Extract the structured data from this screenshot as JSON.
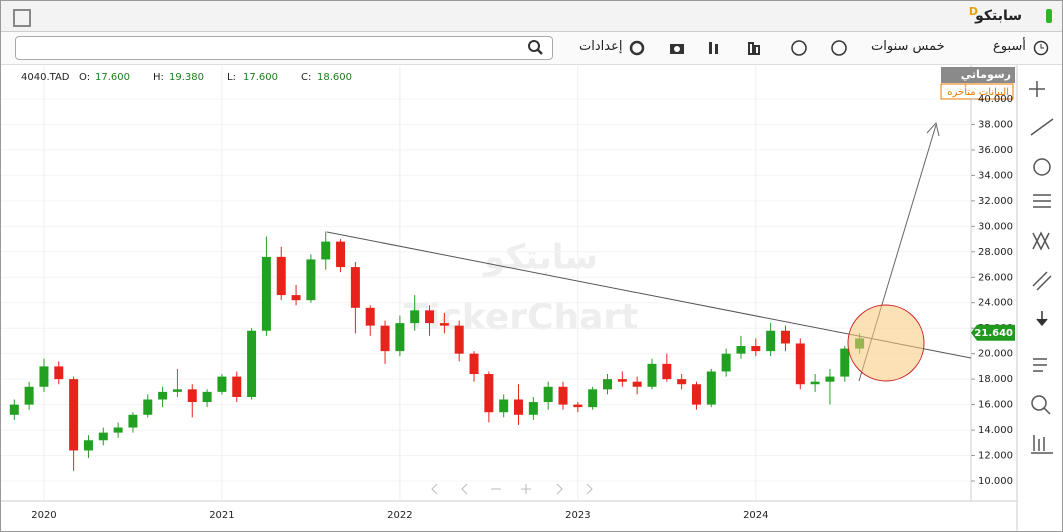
{
  "header": {
    "title": "سابتكو",
    "badge": "D"
  },
  "toolbar": {
    "period": "أسبوع",
    "range": "خمس سنوات",
    "settings": "إعدادات"
  },
  "chart_panel": {
    "drawings": "رسوماتي",
    "delay_note": "البيانات متأخره",
    "watermark_ar": "سابتكو",
    "watermark_en": "TickerChart"
  },
  "chart_data": {
    "type": "candlestick",
    "symbol": "4040.TAD",
    "ohlc_info": [
      {
        "label": "O:",
        "value": "17.600"
      },
      {
        "label": "H:",
        "value": "19.380"
      },
      {
        "label": "L:",
        "value": "17.600"
      },
      {
        "label": "C:",
        "value": "18.600"
      }
    ],
    "categories": [
      null,
      null,
      "2020",
      null,
      null,
      null,
      null,
      null,
      null,
      null,
      null,
      null,
      null,
      null,
      "2021",
      null,
      null,
      null,
      null,
      null,
      null,
      null,
      null,
      null,
      null,
      null,
      "2022",
      null,
      null,
      null,
      null,
      null,
      null,
      null,
      null,
      null,
      null,
      null,
      "2023",
      null,
      null,
      null,
      null,
      null,
      null,
      null,
      null,
      null,
      null,
      null,
      "2024",
      null,
      null,
      null,
      null,
      null,
      null,
      null
    ],
    "open": [
      15.2,
      16.0,
      17.4,
      19.0,
      18.0,
      12.4,
      13.2,
      13.8,
      14.2,
      15.2,
      16.4,
      17.0,
      17.2,
      16.2,
      17.0,
      18.2,
      16.6,
      21.8,
      27.6,
      24.6,
      24.2,
      27.4,
      28.8,
      26.8,
      23.6,
      22.2,
      20.2,
      22.4,
      23.4,
      22.4,
      22.2,
      20.0,
      18.4,
      15.4,
      16.4,
      15.2,
      16.2,
      17.4,
      16.0,
      15.8,
      17.2,
      18.0,
      17.8,
      17.4,
      19.2,
      18.0,
      17.6,
      16.0,
      18.6,
      20.0,
      20.6,
      20.2,
      21.8,
      20.8,
      17.6,
      17.8,
      18.2,
      20.4
    ],
    "high": [
      16.4,
      17.8,
      19.6,
      19.4,
      18.2,
      13.6,
      14.2,
      14.6,
      15.4,
      16.8,
      17.4,
      18.8,
      17.6,
      17.2,
      18.4,
      18.6,
      22.0,
      29.2,
      28.4,
      25.4,
      27.8,
      29.6,
      29.0,
      27.2,
      23.8,
      22.6,
      23.0,
      24.6,
      23.8,
      23.2,
      22.6,
      20.2,
      18.6,
      16.8,
      17.6,
      16.6,
      17.8,
      17.8,
      16.2,
      17.4,
      18.4,
      18.6,
      18.2,
      19.6,
      20.0,
      18.4,
      17.8,
      18.8,
      20.4,
      21.4,
      21.2,
      22.4,
      22.2,
      21.2,
      18.4,
      18.8,
      20.6,
      21.6
    ],
    "low": [
      14.8,
      15.6,
      17.0,
      17.6,
      10.8,
      11.8,
      12.8,
      13.4,
      13.8,
      15.0,
      15.8,
      16.6,
      15.0,
      15.8,
      16.8,
      16.2,
      16.4,
      21.4,
      24.2,
      23.8,
      24.0,
      26.6,
      26.4,
      21.6,
      21.4,
      19.2,
      19.8,
      21.8,
      21.4,
      21.6,
      19.4,
      17.8,
      14.6,
      15.0,
      14.4,
      14.8,
      15.6,
      15.6,
      15.4,
      15.6,
      16.8,
      17.4,
      16.8,
      17.2,
      17.8,
      17.2,
      15.6,
      15.8,
      18.2,
      19.6,
      19.8,
      19.8,
      20.2,
      17.2,
      17.0,
      16.0,
      17.8,
      20.0
    ],
    "close": [
      16.0,
      17.4,
      19.0,
      18.0,
      12.4,
      13.2,
      13.8,
      14.2,
      15.2,
      16.4,
      17.0,
      17.2,
      16.2,
      17.0,
      18.2,
      16.6,
      21.8,
      27.6,
      24.6,
      24.2,
      27.4,
      28.8,
      26.8,
      23.6,
      22.2,
      20.2,
      22.4,
      23.4,
      22.4,
      22.2,
      20.0,
      18.4,
      15.4,
      16.4,
      15.2,
      16.2,
      17.4,
      16.0,
      15.8,
      17.2,
      18.0,
      17.8,
      17.4,
      19.2,
      18.0,
      17.6,
      16.0,
      18.6,
      20.0,
      20.6,
      20.2,
      21.8,
      20.8,
      17.6,
      17.8,
      18.2,
      20.4,
      21.2
    ],
    "up_color": "#22a022",
    "down_color": "#e8231c",
    "last_price": 21.64,
    "last_price_label": "21.640",
    "last_price_color": "#1f9a1f",
    "ylim": [
      8.43,
      42.59
    ],
    "yticks": [
      {
        "value": 10,
        "label": "10.000"
      },
      {
        "value": 12,
        "label": "12.000"
      },
      {
        "value": 14,
        "label": "14.000"
      },
      {
        "value": 16,
        "label": "16.000"
      },
      {
        "value": 18,
        "label": "18.000"
      },
      {
        "value": 20,
        "label": "20.000"
      },
      {
        "value": 22,
        "label": "22.000"
      },
      {
        "value": 24,
        "label": "24.000"
      },
      {
        "value": 26,
        "label": "26.000"
      },
      {
        "value": 28,
        "label": "28.000"
      },
      {
        "value": 30,
        "label": "30.000"
      },
      {
        "value": 32,
        "label": "32.000"
      },
      {
        "value": 34,
        "label": "34.000"
      },
      {
        "value": 36,
        "label": "36.000"
      },
      {
        "value": 38,
        "label": "38.000"
      },
      {
        "value": 40,
        "label": "40.000"
      }
    ],
    "grid": true
  }
}
